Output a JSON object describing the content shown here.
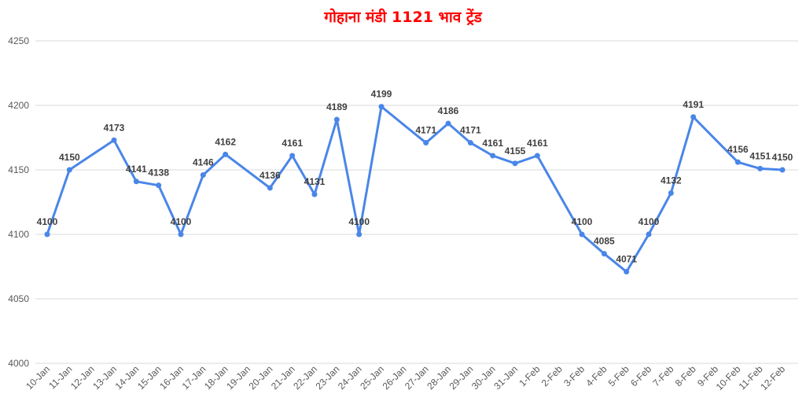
{
  "colors": {
    "title": "#ff0000",
    "series": "#4a86e8",
    "grid": "#d9d9d9"
  },
  "chart_data": {
    "type": "line",
    "title": "गोहाना मंडी 1121 भाव ट्रेंड",
    "xlabel": "",
    "ylabel": "",
    "ylim": [
      4000,
      4250
    ],
    "yticks": [
      4000,
      4050,
      4100,
      4150,
      4200,
      4250
    ],
    "grid": true,
    "legend": "none",
    "categories": [
      "10-Jan",
      "11-Jan",
      "12-Jan",
      "13-Jan",
      "14-Jan",
      "15-Jan",
      "16-Jan",
      "17-Jan",
      "18-Jan",
      "19-Jan",
      "20-Jan",
      "21-Jan",
      "22-Jan",
      "23-Jan",
      "24-Jan",
      "25-Jan",
      "26-Jan",
      "27-Jan",
      "28-Jan",
      "29-Jan",
      "30-Jan",
      "31-Jan",
      "1-Feb",
      "2-Feb",
      "3-Feb",
      "4-Feb",
      "5-Feb",
      "6-Feb",
      "7-Feb",
      "8-Feb",
      "9-Feb",
      "10-Feb",
      "11-Feb",
      "12-Feb"
    ],
    "values": [
      4100,
      4150,
      null,
      4173,
      4141,
      4138,
      4100,
      4146,
      4162,
      null,
      4136,
      4161,
      4131,
      4189,
      4100,
      4199,
      null,
      4171,
      4186,
      4171,
      4161,
      4155,
      4161,
      null,
      4100,
      4085,
      4071,
      4100,
      4132,
      4191,
      null,
      4156,
      4151,
      4150
    ]
  }
}
